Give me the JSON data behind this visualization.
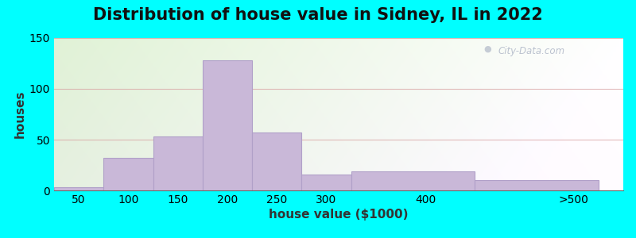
{
  "title": "Distribution of house value in Sidney, IL in 2022",
  "xlabel": "house value ($1000)",
  "ylabel": "houses",
  "bar_labels": [
    "50",
    "100",
    "150",
    "200",
    "250",
    "300",
    "400",
    ">500"
  ],
  "bar_values": [
    3,
    32,
    53,
    128,
    57,
    16,
    19,
    10
  ],
  "x_edges": [
    25,
    75,
    125,
    175,
    225,
    275,
    325,
    450,
    575
  ],
  "x_tick_labels": [
    "50",
    "100",
    "150",
    "200",
    "250",
    "300",
    "400",
    ">500"
  ],
  "x_tick_positions": [
    50,
    100,
    150,
    200,
    250,
    300,
    400,
    550
  ],
  "bar_color": "#c9b8d8",
  "bar_edgecolor": "#b0a0c8",
  "ylim": [
    0,
    150
  ],
  "xlim": [
    25,
    600
  ],
  "yticks": [
    0,
    50,
    100,
    150
  ],
  "background_outer": "#00ffff",
  "title_fontsize": 15,
  "axis_label_fontsize": 11,
  "tick_fontsize": 10,
  "watermark_text": "City-Data.com",
  "grid_color": "#d8a0a0",
  "grid_alpha": 0.7
}
